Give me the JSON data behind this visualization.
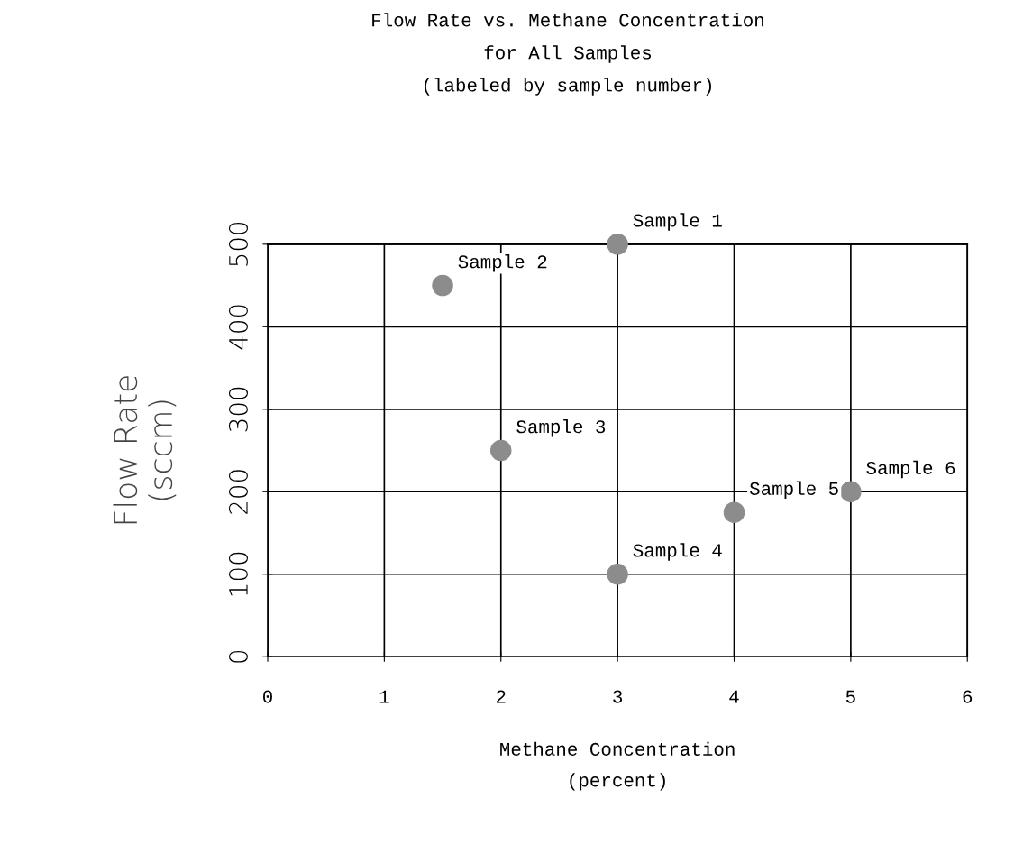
{
  "chart_data": {
    "type": "scatter",
    "title": "Flow Rate vs. Methane Concentration\nfor All Samples\n(labeled by sample number)",
    "xlabel": "Methane Concentration\n(percent)",
    "ylabel": "Flow Rate\n(sccm)",
    "series": [
      {
        "color": "#8c8c8c",
        "x": [
          3,
          1.5,
          2,
          3,
          4,
          5
        ],
        "values": [
          500,
          450,
          250,
          100,
          175,
          200
        ]
      }
    ],
    "annotations": [
      {
        "text": "Sample 1",
        "x": 3,
        "y": 500
      },
      {
        "text": "Sample 2",
        "x": 1.5,
        "y": 450
      },
      {
        "text": "Sample 3",
        "x": 2,
        "y": 250
      },
      {
        "text": "Sample 4",
        "x": 3,
        "y": 100
      },
      {
        "text": "Sample 5",
        "x": 4,
        "y": 175
      },
      {
        "text": "Sample 6",
        "x": 5,
        "y": 200
      }
    ],
    "xlim": [
      0,
      6
    ],
    "xticks": [
      0,
      1,
      2,
      3,
      4,
      5,
      6
    ],
    "ylim": [
      0,
      500
    ],
    "yticks": [
      0,
      100,
      200,
      300,
      400,
      500
    ],
    "grid": true,
    "marker": "circle"
  }
}
